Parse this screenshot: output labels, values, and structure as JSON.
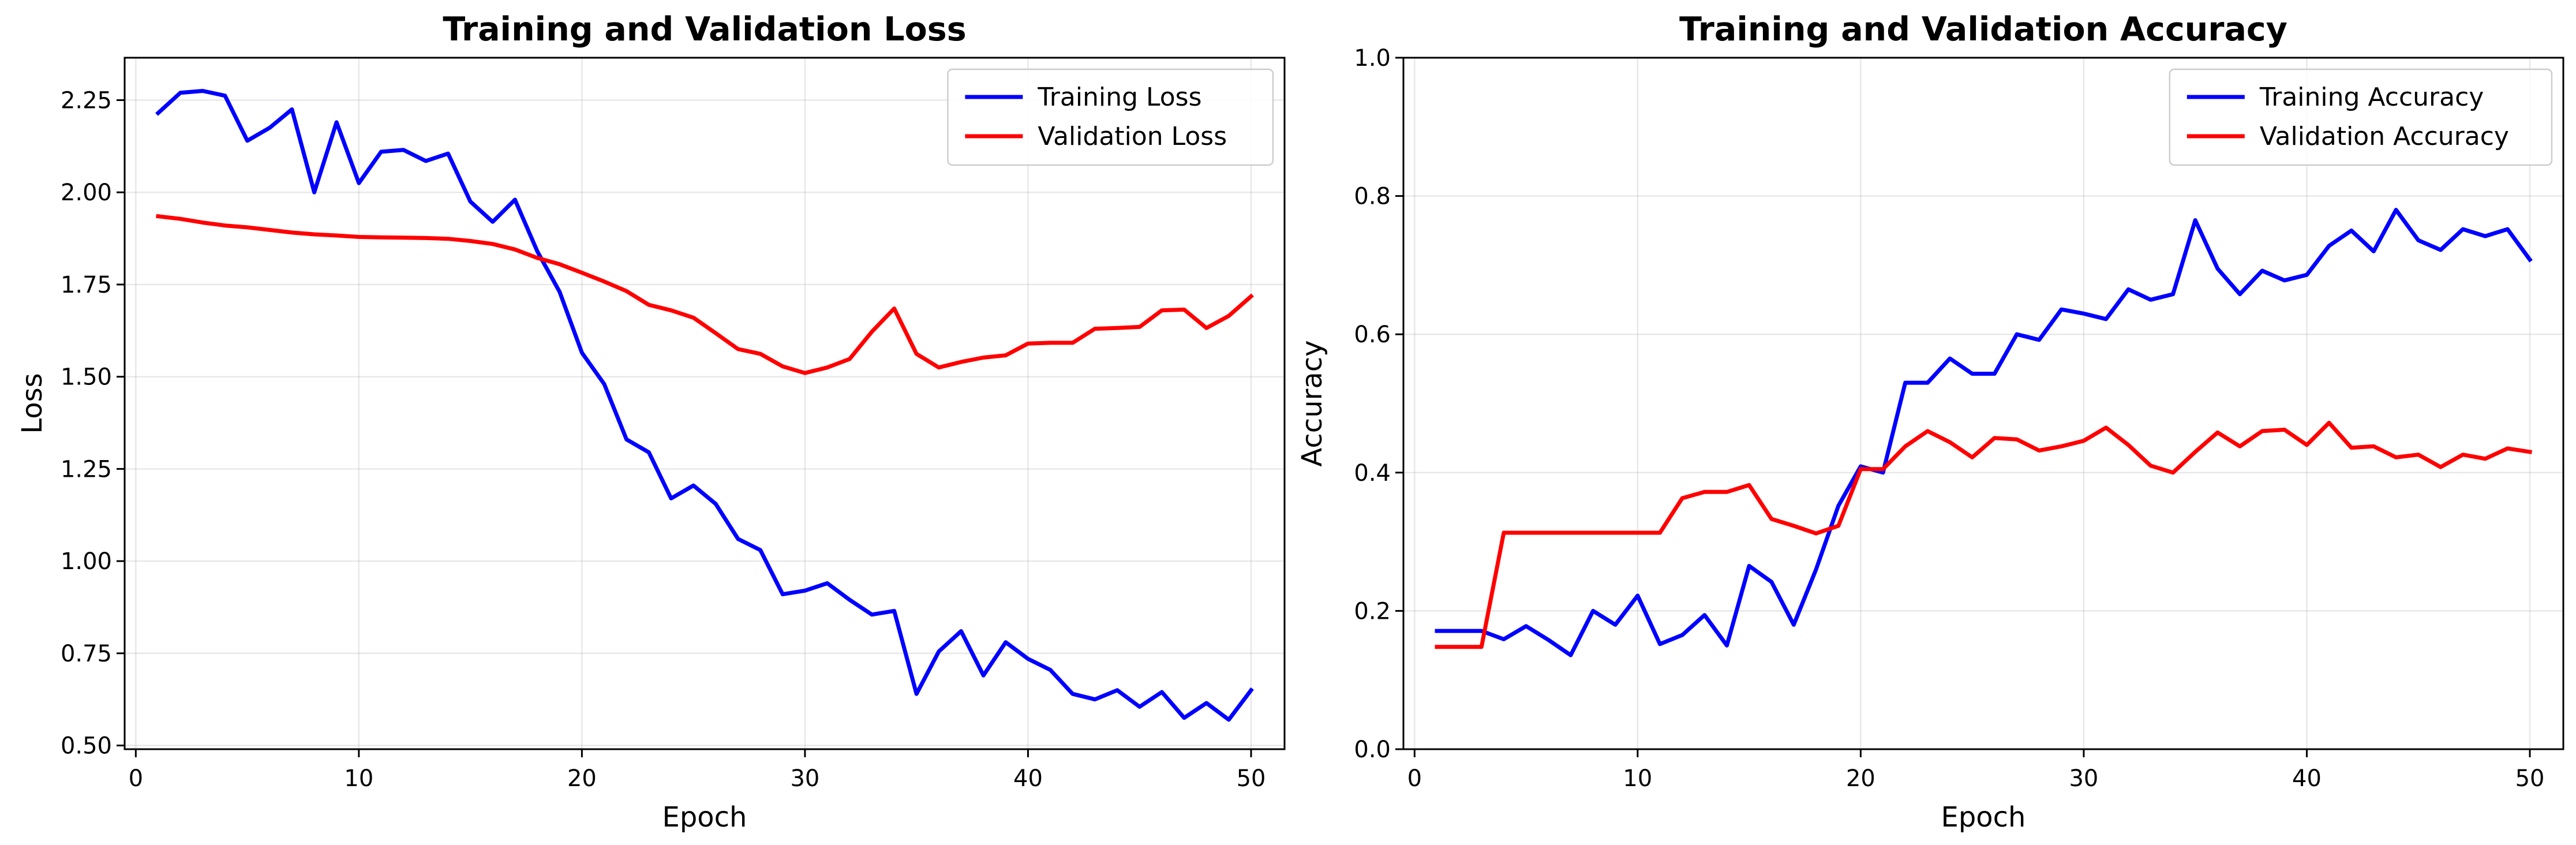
{
  "chart_data": [
    {
      "type": "line",
      "title": "Training and Validation Loss",
      "xlabel": "Epoch",
      "ylabel": "Loss",
      "xlim": [
        -0.5,
        51.5
      ],
      "ylim": [
        0.49,
        2.365
      ],
      "xticks": [
        0,
        10,
        20,
        30,
        40,
        50
      ],
      "xtick_labels": [
        "0",
        "10",
        "20",
        "30",
        "40",
        "50"
      ],
      "yticks": [
        0.5,
        0.75,
        1.0,
        1.25,
        1.5,
        1.75,
        2.0,
        2.25
      ],
      "ytick_labels": [
        "0.50",
        "0.75",
        "1.00",
        "1.25",
        "1.50",
        "1.75",
        "2.00",
        "2.25"
      ],
      "grid": true,
      "legend_position": "top-right",
      "x": [
        1,
        2,
        3,
        4,
        5,
        6,
        7,
        8,
        9,
        10,
        11,
        12,
        13,
        14,
        15,
        16,
        17,
        18,
        19,
        20,
        21,
        22,
        23,
        24,
        25,
        26,
        27,
        28,
        29,
        30,
        31,
        32,
        33,
        34,
        35,
        36,
        37,
        38,
        39,
        40,
        41,
        42,
        43,
        44,
        45,
        46,
        47,
        48,
        49,
        50
      ],
      "series": [
        {
          "name": "Training Loss",
          "color": "#0000ff",
          "values": [
            2.215,
            2.27,
            2.275,
            2.262,
            2.14,
            2.175,
            2.225,
            2.0,
            2.19,
            2.025,
            2.11,
            2.115,
            2.085,
            2.105,
            1.975,
            1.92,
            1.98,
            1.84,
            1.73,
            1.565,
            1.48,
            1.33,
            1.295,
            1.17,
            1.205,
            1.155,
            1.06,
            1.03,
            0.91,
            0.92,
            0.94,
            0.895,
            0.855,
            0.865,
            0.64,
            0.755,
            0.81,
            0.69,
            0.78,
            0.735,
            0.705,
            0.64,
            0.625,
            0.65,
            0.605,
            0.645,
            0.575,
            0.615,
            0.57,
            0.65
          ]
        },
        {
          "name": "Validation Loss",
          "color": "#ff0000",
          "values": [
            1.935,
            1.928,
            1.918,
            1.91,
            1.905,
            1.898,
            1.891,
            1.886,
            1.883,
            1.879,
            1.878,
            1.877,
            1.876,
            1.874,
            1.868,
            1.86,
            1.845,
            1.822,
            1.805,
            1.782,
            1.758,
            1.732,
            1.695,
            1.68,
            1.66,
            1.618,
            1.575,
            1.562,
            1.528,
            1.51,
            1.525,
            1.548,
            1.622,
            1.685,
            1.562,
            1.525,
            1.54,
            1.552,
            1.558,
            1.59,
            1.592,
            1.592,
            1.63,
            1.632,
            1.635,
            1.68,
            1.682,
            1.632,
            1.665,
            1.718
          ]
        }
      ]
    },
    {
      "type": "line",
      "title": "Training and Validation Accuracy",
      "xlabel": "Epoch",
      "ylabel": "Accuracy",
      "xlim": [
        -0.5,
        51.5
      ],
      "ylim": [
        0,
        1
      ],
      "xticks": [
        0,
        10,
        20,
        30,
        40,
        50
      ],
      "xtick_labels": [
        "0",
        "10",
        "20",
        "30",
        "40",
        "50"
      ],
      "yticks": [
        0,
        0.2,
        0.4,
        0.6,
        0.8,
        1.0
      ],
      "ytick_labels": [
        "0.0",
        "0.2",
        "0.4",
        "0.6",
        "0.8",
        "1.0"
      ],
      "grid": true,
      "legend_position": "top-right",
      "x": [
        1,
        2,
        3,
        4,
        5,
        6,
        7,
        8,
        9,
        10,
        11,
        12,
        13,
        14,
        15,
        16,
        17,
        18,
        19,
        20,
        21,
        22,
        23,
        24,
        25,
        26,
        27,
        28,
        29,
        30,
        31,
        32,
        33,
        34,
        35,
        36,
        37,
        38,
        39,
        40,
        41,
        42,
        43,
        44,
        45,
        46,
        47,
        48,
        49,
        50
      ],
      "series": [
        {
          "name": "Training Accuracy",
          "color": "#0000ff",
          "values": [
            0.171,
            0.171,
            0.171,
            0.159,
            0.178,
            0.158,
            0.136,
            0.2,
            0.18,
            0.222,
            0.152,
            0.165,
            0.194,
            0.15,
            0.265,
            0.242,
            0.18,
            0.26,
            0.352,
            0.409,
            0.4,
            0.53,
            0.53,
            0.565,
            0.543,
            0.543,
            0.6,
            0.592,
            0.636,
            0.63,
            0.622,
            0.665,
            0.65,
            0.658,
            0.765,
            0.695,
            0.658,
            0.692,
            0.678,
            0.686,
            0.728,
            0.75,
            0.72,
            0.78,
            0.736,
            0.722,
            0.752,
            0.742,
            0.752,
            0.708
          ]
        },
        {
          "name": "Validation Accuracy",
          "color": "#ff0000",
          "values": [
            0.148,
            0.148,
            0.148,
            0.313,
            0.313,
            0.313,
            0.313,
            0.313,
            0.313,
            0.313,
            0.313,
            0.363,
            0.372,
            0.372,
            0.382,
            0.333,
            0.323,
            0.312,
            0.323,
            0.405,
            0.405,
            0.438,
            0.46,
            0.444,
            0.422,
            0.45,
            0.448,
            0.432,
            0.438,
            0.446,
            0.465,
            0.44,
            0.41,
            0.4,
            0.43,
            0.458,
            0.438,
            0.46,
            0.462,
            0.44,
            0.472,
            0.436,
            0.438,
            0.422,
            0.426,
            0.408,
            0.426,
            0.42,
            0.435,
            0.43
          ]
        }
      ]
    }
  ]
}
